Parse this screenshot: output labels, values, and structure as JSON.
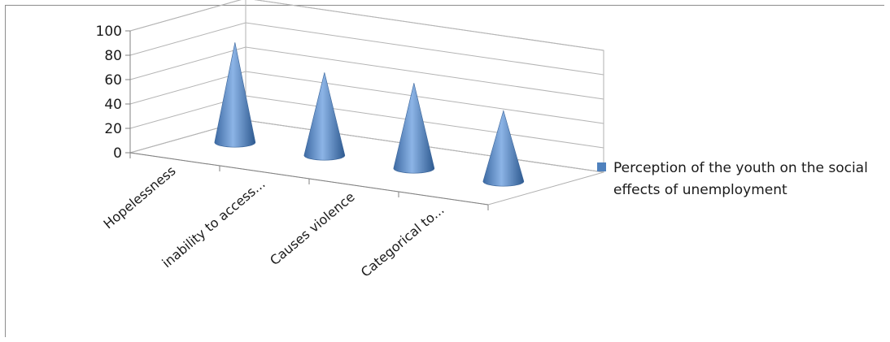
{
  "chart_data": {
    "type": "bar",
    "subtype": "3d-cone",
    "categories": [
      "Hopelessness",
      "inability to access...",
      "Causes violence",
      "Categorical to..."
    ],
    "series": [
      {
        "name": "Perception of the youth on the social effects of unemployment",
        "values": [
          82,
          68,
          70,
          58
        ],
        "color": "#4f81bd"
      }
    ],
    "ylim": [
      0,
      100
    ],
    "yticks": [
      0,
      20,
      40,
      60,
      80,
      100
    ],
    "grid": true,
    "legend_position": "right"
  }
}
